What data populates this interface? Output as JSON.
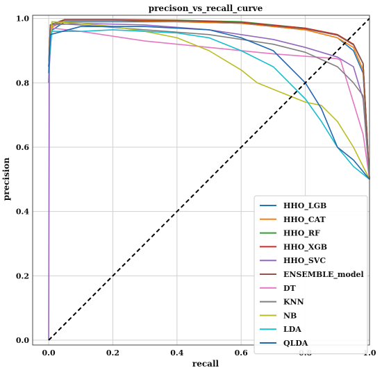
{
  "chart_data": {
    "type": "line",
    "title": "precison_vs_recall_curve",
    "xlabel": "recall",
    "ylabel": "precision",
    "xlim": [
      -0.05,
      1.0
    ],
    "ylim": [
      -0.015,
      1.01
    ],
    "x_ticks": [
      "0.0",
      "0.2",
      "0.4",
      "0.6",
      "0.8",
      "1.0"
    ],
    "y_ticks": [
      "0.0",
      "0.2",
      "0.4",
      "0.6",
      "0.8",
      "1.0"
    ],
    "grid": true,
    "legend_position": "bottom-right",
    "series": [
      {
        "name": "HHO_LGB",
        "color": "#1f77b4",
        "points": [
          [
            0,
            0.8
          ],
          [
            0.005,
            0.96
          ],
          [
            0.05,
            0.99
          ],
          [
            0.2,
            0.99
          ],
          [
            0.4,
            0.99
          ],
          [
            0.6,
            0.985
          ],
          [
            0.8,
            0.965
          ],
          [
            0.9,
            0.94
          ],
          [
            0.95,
            0.9
          ],
          [
            0.98,
            0.83
          ],
          [
            1.0,
            0.5
          ]
        ]
      },
      {
        "name": "HHO_CAT",
        "color": "#ff7f0e",
        "points": [
          [
            0,
            0.85
          ],
          [
            0.005,
            0.97
          ],
          [
            0.05,
            0.995
          ],
          [
            0.2,
            0.995
          ],
          [
            0.4,
            0.99
          ],
          [
            0.6,
            0.985
          ],
          [
            0.8,
            0.965
          ],
          [
            0.9,
            0.94
          ],
          [
            0.95,
            0.91
          ],
          [
            0.98,
            0.84
          ],
          [
            1.0,
            0.5
          ]
        ]
      },
      {
        "name": "HHO_RF",
        "color": "#2ca02c",
        "points": [
          [
            0,
            0.85
          ],
          [
            0.005,
            0.98
          ],
          [
            0.05,
            0.997
          ],
          [
            0.2,
            0.997
          ],
          [
            0.4,
            0.995
          ],
          [
            0.6,
            0.99
          ],
          [
            0.8,
            0.97
          ],
          [
            0.9,
            0.95
          ],
          [
            0.95,
            0.92
          ],
          [
            0.98,
            0.86
          ],
          [
            1.0,
            0.5
          ]
        ]
      },
      {
        "name": "HHO_XGB",
        "color": "#d62728",
        "points": [
          [
            0,
            0.85
          ],
          [
            0.005,
            0.98
          ],
          [
            0.05,
            0.996
          ],
          [
            0.2,
            0.996
          ],
          [
            0.4,
            0.994
          ],
          [
            0.6,
            0.988
          ],
          [
            0.8,
            0.97
          ],
          [
            0.9,
            0.95
          ],
          [
            0.95,
            0.92
          ],
          [
            0.98,
            0.86
          ],
          [
            1.0,
            0.5
          ]
        ]
      },
      {
        "name": "HHO_SVC",
        "color": "#9467bd",
        "points": [
          [
            0,
            0.0
          ],
          [
            0.002,
            0.85
          ],
          [
            0.01,
            0.98
          ],
          [
            0.1,
            0.985
          ],
          [
            0.3,
            0.98
          ],
          [
            0.5,
            0.965
          ],
          [
            0.7,
            0.935
          ],
          [
            0.8,
            0.91
          ],
          [
            0.9,
            0.88
          ],
          [
            0.95,
            0.85
          ],
          [
            0.98,
            0.75
          ],
          [
            1.0,
            0.5
          ]
        ]
      },
      {
        "name": "ENSEMBLE_model",
        "color": "#8c564b",
        "points": [
          [
            0,
            0.85
          ],
          [
            0.005,
            0.98
          ],
          [
            0.05,
            0.995
          ],
          [
            0.2,
            0.995
          ],
          [
            0.4,
            0.993
          ],
          [
            0.6,
            0.987
          ],
          [
            0.8,
            0.968
          ],
          [
            0.9,
            0.948
          ],
          [
            0.95,
            0.918
          ],
          [
            0.98,
            0.86
          ],
          [
            1.0,
            0.5
          ]
        ]
      },
      {
        "name": "DT",
        "color": "#e377c2",
        "points": [
          [
            0,
            0.85
          ],
          [
            0.01,
            0.97
          ],
          [
            0.1,
            0.96
          ],
          [
            0.3,
            0.93
          ],
          [
            0.5,
            0.91
          ],
          [
            0.7,
            0.89
          ],
          [
            0.9,
            0.875
          ],
          [
            0.91,
            0.87
          ],
          [
            0.98,
            0.64
          ],
          [
            1.0,
            0.5
          ]
        ]
      },
      {
        "name": "KNN",
        "color": "#7f7f7f",
        "points": [
          [
            0,
            0.85
          ],
          [
            0.01,
            0.985
          ],
          [
            0.1,
            0.98
          ],
          [
            0.3,
            0.965
          ],
          [
            0.5,
            0.95
          ],
          [
            0.7,
            0.92
          ],
          [
            0.8,
            0.895
          ],
          [
            0.9,
            0.85
          ],
          [
            0.95,
            0.8
          ],
          [
            0.98,
            0.76
          ],
          [
            1.0,
            0.5
          ]
        ]
      },
      {
        "name": "NB",
        "color": "#bcbd22",
        "points": [
          [
            0,
            0.85
          ],
          [
            0.01,
            0.99
          ],
          [
            0.1,
            0.985
          ],
          [
            0.2,
            0.975
          ],
          [
            0.3,
            0.96
          ],
          [
            0.4,
            0.94
          ],
          [
            0.5,
            0.9
          ],
          [
            0.55,
            0.87
          ],
          [
            0.6,
            0.84
          ],
          [
            0.65,
            0.8
          ],
          [
            0.7,
            0.78
          ],
          [
            0.75,
            0.76
          ],
          [
            0.8,
            0.74
          ],
          [
            0.85,
            0.73
          ],
          [
            0.9,
            0.68
          ],
          [
            0.95,
            0.6
          ],
          [
            1.0,
            0.5
          ]
        ]
      },
      {
        "name": "LDA",
        "color": "#17becf",
        "points": [
          [
            0,
            0.85
          ],
          [
            0.01,
            0.96
          ],
          [
            0.1,
            0.96
          ],
          [
            0.2,
            0.965
          ],
          [
            0.3,
            0.96
          ],
          [
            0.4,
            0.955
          ],
          [
            0.5,
            0.94
          ],
          [
            0.6,
            0.9
          ],
          [
            0.7,
            0.85
          ],
          [
            0.8,
            0.75
          ],
          [
            0.85,
            0.68
          ],
          [
            0.9,
            0.6
          ],
          [
            0.95,
            0.54
          ],
          [
            1.0,
            0.5
          ]
        ]
      },
      {
        "name": "QLDA",
        "color": "#1f68b0",
        "points": [
          [
            0,
            0.83
          ],
          [
            0.005,
            0.95
          ],
          [
            0.1,
            0.975
          ],
          [
            0.3,
            0.975
          ],
          [
            0.5,
            0.965
          ],
          [
            0.6,
            0.94
          ],
          [
            0.7,
            0.9
          ],
          [
            0.8,
            0.8
          ],
          [
            0.85,
            0.72
          ],
          [
            0.9,
            0.6
          ],
          [
            0.95,
            0.56
          ],
          [
            1.0,
            0.5
          ]
        ]
      },
      {
        "name": "",
        "color": "#000000",
        "dashed": true,
        "points": [
          [
            0,
            0
          ],
          [
            1,
            1
          ]
        ]
      }
    ]
  }
}
